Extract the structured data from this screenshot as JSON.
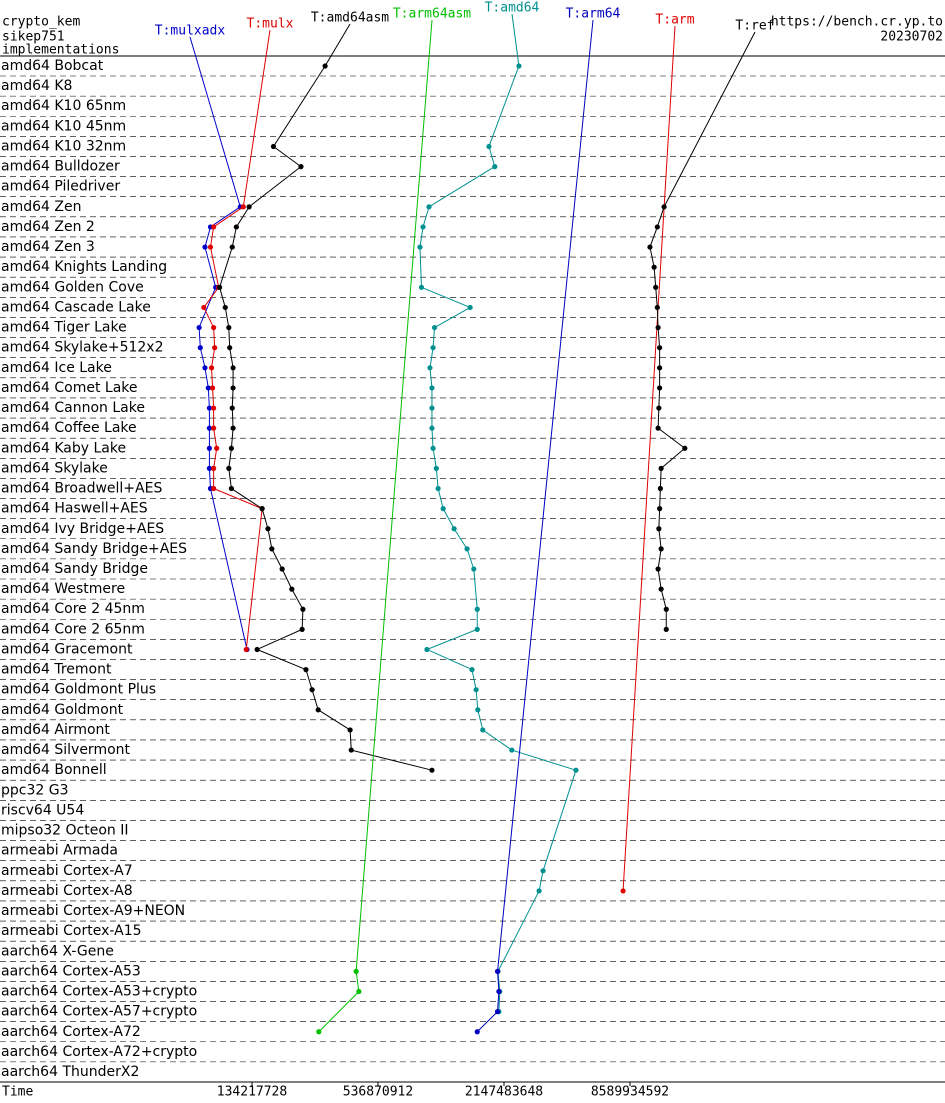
{
  "chart_data": {
    "type": "line",
    "header_left": [
      "crypto_kem",
      "sikep751",
      "implementations"
    ],
    "header_right": [
      "https://bench.cr.yp.to",
      "20230702"
    ],
    "xlabel": "Time",
    "xscale": "log",
    "xlim": [
      8388608,
      274877906944
    ],
    "xticks": [
      134217728,
      536870912,
      2147483648,
      8589934592
    ],
    "categories": [
      "amd64 Bobcat",
      "amd64 K8",
      "amd64 K10 65nm",
      "amd64 K10 45nm",
      "amd64 K10 32nm",
      "amd64 Bulldozer",
      "amd64 Piledriver",
      "amd64 Zen",
      "amd64 Zen 2",
      "amd64 Zen 3",
      "amd64 Knights Landing",
      "amd64 Golden Cove",
      "amd64 Cascade Lake",
      "amd64 Tiger Lake",
      "amd64 Skylake+512x2",
      "amd64 Ice Lake",
      "amd64 Comet Lake",
      "amd64 Cannon Lake",
      "amd64 Coffee Lake",
      "amd64 Kaby Lake",
      "amd64 Skylake",
      "amd64 Broadwell+AES",
      "amd64 Haswell+AES",
      "amd64 Ivy Bridge+AES",
      "amd64 Sandy Bridge+AES",
      "amd64 Sandy Bridge",
      "amd64 Westmere",
      "amd64 Core 2 45nm",
      "amd64 Core 2 65nm",
      "amd64 Gracemont",
      "amd64 Tremont",
      "amd64 Goldmont Plus",
      "amd64 Goldmont",
      "amd64 Airmont",
      "amd64 Silvermont",
      "amd64 Bonnell",
      "ppc32 G3",
      "riscv64 U54",
      "mipso32 Octeon II",
      "armeabi Armada",
      "armeabi Cortex-A7",
      "armeabi Cortex-A8",
      "armeabi Cortex-A9+NEON",
      "armeabi Cortex-A15",
      "aarch64 X-Gene",
      "aarch64 Cortex-A53",
      "aarch64 Cortex-A53+crypto",
      "aarch64 Cortex-A57+crypto",
      "aarch64 Cortex-A72",
      "aarch64 Cortex-A72+crypto",
      "aarch64 ThunderX2"
    ],
    "series": [
      {
        "name": "T:mulxadx",
        "color": "#0000cc",
        "values": [
          null,
          null,
          null,
          null,
          null,
          null,
          null,
          118000000,
          85000000,
          80000000,
          null,
          90000000,
          null,
          75000000,
          76000000,
          80000000,
          83000000,
          84000000,
          84000000,
          84000000,
          84000000,
          85000000,
          null,
          null,
          null,
          null,
          null,
          null,
          null,
          127000000,
          null,
          null,
          null,
          null,
          null,
          null,
          null,
          null,
          null,
          null,
          null,
          null,
          null,
          null,
          null,
          null,
          null,
          null,
          null,
          null,
          null
        ]
      },
      {
        "name": "T:mulx",
        "color": "#e00000",
        "values": [
          null,
          null,
          null,
          null,
          null,
          null,
          null,
          122000000,
          88000000,
          85000000,
          null,
          93000000,
          79000000,
          88000000,
          89000000,
          86000000,
          87000000,
          88000000,
          88000000,
          91000000,
          88000000,
          88000000,
          150000000,
          null,
          null,
          null,
          null,
          null,
          null,
          126000000,
          null,
          null,
          null,
          null,
          null,
          null,
          null,
          null,
          null,
          null,
          null,
          null,
          null,
          null,
          null,
          null,
          null,
          null,
          null,
          null,
          null
        ]
      },
      {
        "name": "T:amd64asm",
        "color": "#000000",
        "values": [
          300000000,
          null,
          null,
          null,
          170000000,
          230000000,
          null,
          130000000,
          113000000,
          108000000,
          null,
          94000000,
          100000000,
          104000000,
          105000000,
          109000000,
          109000000,
          108000000,
          109000000,
          107000000,
          104000000,
          107000000,
          150000000,
          160000000,
          167000000,
          187000000,
          208000000,
          235000000,
          233000000,
          142000000,
          243000000,
          260000000,
          278000000,
          395000000,
          400000000,
          972000000,
          null,
          null,
          null,
          null,
          null,
          null,
          null,
          null,
          null,
          null,
          null,
          null,
          null,
          null,
          null
        ]
      },
      {
        "name": "T:arm64asm",
        "color": "#00c000",
        "values": [
          null,
          null,
          null,
          null,
          null,
          null,
          null,
          null,
          null,
          null,
          null,
          null,
          null,
          null,
          null,
          null,
          null,
          null,
          null,
          null,
          null,
          null,
          null,
          null,
          null,
          null,
          null,
          null,
          null,
          null,
          null,
          null,
          null,
          null,
          null,
          null,
          null,
          null,
          null,
          null,
          null,
          null,
          null,
          null,
          null,
          422000000,
          435000000,
          null,
          280000000,
          null,
          null
        ]
      },
      {
        "name": "T:amd64",
        "color": "#009090",
        "values": [
          2530000000,
          null,
          null,
          null,
          1820000000,
          1940000000,
          null,
          941000000,
          881000000,
          852000000,
          null,
          866000000,
          1480000000,
          1000000000,
          984000000,
          951000000,
          972000000,
          972000000,
          972000000,
          984000000,
          1020000000,
          1040000000,
          1100000000,
          1240000000,
          1430000000,
          1540000000,
          null,
          1600000000,
          1600000000,
          920000000,
          1510000000,
          1580000000,
          1610000000,
          1700000000,
          2340000000,
          4740000000,
          null,
          null,
          null,
          null,
          3300000000,
          3160000000,
          null,
          null,
          null,
          2010000000,
          2050000000,
          2030000000,
          null,
          null,
          null
        ]
      },
      {
        "name": "T:arm64",
        "color": "#0000c0",
        "values": [
          null,
          null,
          null,
          null,
          null,
          null,
          null,
          null,
          null,
          null,
          null,
          null,
          null,
          null,
          null,
          null,
          null,
          null,
          null,
          null,
          null,
          null,
          null,
          null,
          null,
          null,
          null,
          null,
          null,
          null,
          null,
          null,
          null,
          null,
          null,
          null,
          null,
          null,
          null,
          null,
          null,
          null,
          null,
          null,
          null,
          2000000000,
          2030000000,
          2000000000,
          1600000000,
          null,
          null
        ]
      },
      {
        "name": "T:arm",
        "color": "#e00000",
        "values": [
          null,
          null,
          null,
          null,
          null,
          null,
          null,
          null,
          null,
          null,
          null,
          null,
          null,
          null,
          null,
          null,
          null,
          null,
          null,
          null,
          null,
          null,
          null,
          null,
          null,
          null,
          null,
          null,
          null,
          null,
          null,
          null,
          null,
          null,
          null,
          null,
          null,
          null,
          null,
          null,
          null,
          7960000000,
          null,
          null,
          null,
          null,
          null,
          null,
          null,
          null,
          null
        ]
      },
      {
        "name": "T:ref",
        "color": "#000000",
        "values": [
          null,
          null,
          null,
          null,
          null,
          null,
          null,
          12500000000,
          11600000000,
          10700000000,
          11200000000,
          11400000000,
          11600000000,
          11700000000,
          11900000000,
          11900000000,
          11900000000,
          11800000000,
          11700000000,
          15700000000,
          12100000000,
          12000000000,
          11900000000,
          11800000000,
          12100000000,
          11700000000,
          12100000000,
          12800000000,
          12800000000,
          null,
          null,
          null,
          null,
          null,
          null,
          null,
          null,
          null,
          null,
          null,
          null,
          null,
          null,
          null,
          null,
          null,
          null,
          null,
          null,
          null,
          null
        ]
      }
    ]
  }
}
